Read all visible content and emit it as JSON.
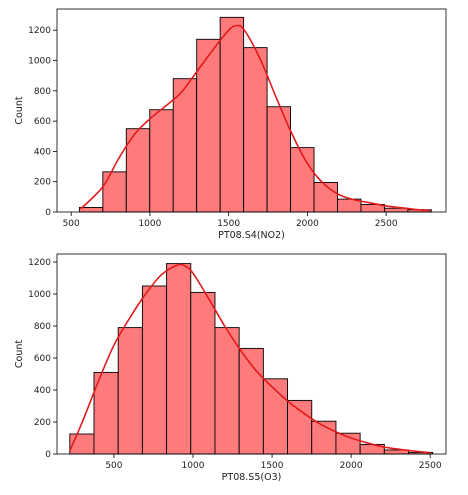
{
  "colors": {
    "bar_fill": "#ff7b7b",
    "bar_edge": "#000000",
    "kde": "#e31a1c",
    "frame": "#000000"
  },
  "chart_data": [
    {
      "type": "bar",
      "subtype": "histogram-with-kde",
      "xlabel": "PT08.S4(NO2)",
      "ylabel": "Count",
      "xlim": [
        410,
        2880
      ],
      "ylim": [
        0,
        1340
      ],
      "xticks": [
        500,
        1000,
        1500,
        2000,
        2500
      ],
      "yticks": [
        0,
        200,
        400,
        600,
        800,
        1000,
        1200
      ],
      "bin_edges": [
        552,
        701,
        850,
        999,
        1148,
        1297,
        1446,
        1595,
        1744,
        1893,
        2042,
        2191,
        2340,
        2489,
        2638,
        2787
      ],
      "values": [
        30,
        265,
        550,
        675,
        880,
        1140,
        1285,
        1085,
        695,
        425,
        195,
        85,
        50,
        25,
        15
      ],
      "kde": {
        "x": [
          560,
          700,
          800,
          900,
          1000,
          1100,
          1200,
          1300,
          1400,
          1500,
          1550,
          1600,
          1700,
          1800,
          1900,
          2000,
          2100,
          2200,
          2300,
          2400,
          2500,
          2600,
          2700,
          2780
        ],
        "y": [
          20,
          165,
          350,
          510,
          615,
          700,
          790,
          930,
          1070,
          1200,
          1230,
          1200,
          1010,
          760,
          520,
          320,
          190,
          115,
          80,
          60,
          40,
          28,
          15,
          10
        ]
      }
    },
    {
      "type": "bar",
      "subtype": "histogram-with-kde",
      "xlabel": "PT08.S5(O3)",
      "ylabel": "Count",
      "xlim": [
        140,
        2600
      ],
      "ylim": [
        0,
        1250
      ],
      "xticks": [
        500,
        1000,
        1500,
        2000,
        2500
      ],
      "yticks": [
        0,
        200,
        400,
        600,
        800,
        1000,
        1200
      ],
      "bin_edges": [
        221,
        374,
        527,
        680,
        833,
        986,
        1139,
        1292,
        1445,
        1598,
        1751,
        1904,
        2057,
        2210,
        2363,
        2516
      ],
      "values": [
        125,
        510,
        790,
        1050,
        1190,
        1010,
        790,
        660,
        470,
        335,
        205,
        130,
        60,
        25,
        10
      ],
      "kde": {
        "x": [
          221,
          300,
          400,
          500,
          600,
          700,
          800,
          900,
          950,
          1000,
          1100,
          1200,
          1300,
          1400,
          1500,
          1600,
          1700,
          1800,
          1900,
          2000,
          2100,
          2200,
          2300,
          2400,
          2500
        ],
        "y": [
          20,
          200,
          450,
          680,
          850,
          1000,
          1120,
          1180,
          1175,
          1130,
          970,
          800,
          650,
          520,
          420,
          330,
          255,
          190,
          140,
          100,
          70,
          45,
          30,
          18,
          8
        ]
      }
    }
  ]
}
